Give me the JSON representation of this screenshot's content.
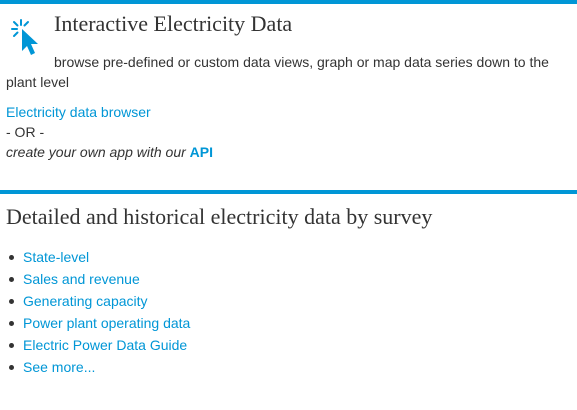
{
  "interactive": {
    "title": "Interactive Electricity Data",
    "description": "browse pre-defined or custom data views, graph or map data series down to the plant level",
    "browser_link": "Electricity data browser",
    "or_text": "- OR -",
    "api_prefix": "create your own app with our",
    "api_link": "API",
    "icon": "click-cursor-icon"
  },
  "survey": {
    "title": "Detailed and historical electricity data by survey",
    "items": [
      {
        "label": "State-level"
      },
      {
        "label": "Sales and revenue"
      },
      {
        "label": "Generating capacity"
      },
      {
        "label": "Power plant operating data"
      },
      {
        "label": "Electric Power Data Guide"
      },
      {
        "label": "See more..."
      }
    ]
  },
  "colors": {
    "accent": "#0096d6",
    "text": "#333333",
    "background": "#ffffff"
  }
}
